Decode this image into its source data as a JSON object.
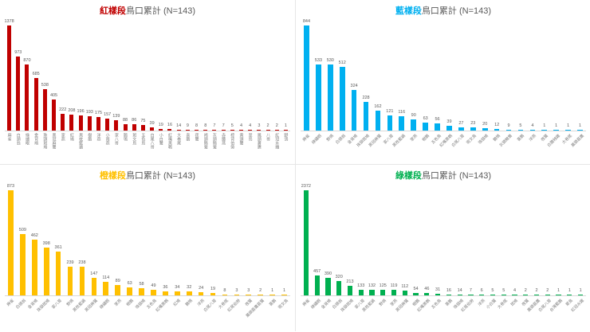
{
  "window": {
    "background": "#ffffff",
    "divider_color": "#e6e6e6"
  },
  "chart_data": [
    {
      "id": "red",
      "type": "bar",
      "title": "紅樣段鳥口累計 (N=143)",
      "title_highlight": "紅樣段",
      "title_rest": "鳥口累計 (N=143)",
      "color": "#c00000",
      "highlight_color": "#c00000",
      "label_orientation": "vertical",
      "categories": [
        "麻雀",
        "白頭翁",
        "綠繡眼",
        "金背鳩",
        "珠頸斑鳩",
        "黑冠麻鷺",
        "家燕",
        "紅鳩",
        "黑枕藍鶲",
        "樹鵲",
        "洋燕",
        "小雨燕",
        "家八哥",
        "鵲鴝",
        "斑文鳥",
        "五色鳥",
        "白尾八哥",
        "小白鷺",
        "紅嘴黑鵯",
        "大卷尾",
        "喜鵲",
        "夜鷺",
        "褐頭鷦鶯",
        "灰頭鷦鶯",
        "赤腰燕",
        "棕背伯勞",
        "黃頭鷺",
        "翠鳥",
        "鳳頭蒼鷹",
        "八哥",
        "紅冠水雞",
        "野鴿"
      ],
      "values": [
        1378,
        973,
        870,
        685,
        538,
        405,
        222,
        208,
        196,
        193,
        175,
        157,
        139,
        88,
        86,
        75,
        39,
        19,
        16,
        14,
        9,
        8,
        8,
        7,
        7,
        5,
        4,
        4,
        3,
        2,
        2,
        1
      ],
      "xlabel": "",
      "ylabel": "",
      "ylim": [
        0,
        1378
      ],
      "grid": false,
      "legend": "none"
    },
    {
      "id": "blue",
      "type": "bar",
      "title": "藍樣段鳥口累計 (N=143)",
      "title_highlight": "藍樣段",
      "title_rest": "鳥口累計 (N=143)",
      "color": "#00b0f0",
      "highlight_color": "#00b0f0",
      "label_orientation": "rotated",
      "categories": [
        "麻雀",
        "綠繡眼",
        "野鴿",
        "白頭翁",
        "金背鳩",
        "珠頸斑鳩",
        "黑冠麻鷺",
        "家八哥",
        "黑枕藍鶲",
        "家燕",
        "樹鵲",
        "五色鳥",
        "紅嘴黑鵯",
        "白尾八哥",
        "斑文鳥",
        "珠頸鳩",
        "鵲鴝",
        "灰頭鷦鶯",
        "喜鵲",
        "洋燕",
        "夜鷺",
        "白腹秧雞",
        "大卷尾",
        "鳳頭蒼鷹"
      ],
      "values": [
        844,
        533,
        530,
        512,
        324,
        228,
        162,
        121,
        116,
        90,
        63,
        56,
        39,
        27,
        23,
        20,
        12,
        9,
        5,
        4,
        1,
        1,
        1,
        1
      ],
      "xlabel": "",
      "ylabel": "",
      "ylim": [
        0,
        844
      ],
      "grid": false,
      "legend": "none"
    },
    {
      "id": "yellow",
      "type": "bar",
      "title": "橙樣段鳥口累計 (N=143)",
      "title_highlight": "橙樣段",
      "title_rest": "鳥口累計 (N=143)",
      "color": "#ffc000",
      "highlight_color": "#ffc000",
      "label_orientation": "rotated",
      "categories": [
        "麻雀",
        "白頭翁",
        "金背鳩",
        "珠頸斑鳩",
        "家八哥",
        "野鴿",
        "黑枕藍鶲",
        "黑冠麻鷺",
        "綠繡眼",
        "家燕",
        "樹鵲",
        "珠頸鳩",
        "五色鳥",
        "紅嘴黑鵯",
        "紅鳩",
        "鵲鴝",
        "洋燕",
        "白尾八哥",
        "大卷尾",
        "紅尾伯勞",
        "夜鷺",
        "鳳頭蒼鷹蒼鷺",
        "喜鵲",
        "斑文鳥"
      ],
      "values": [
        873,
        509,
        462,
        398,
        361,
        239,
        238,
        147,
        114,
        89,
        63,
        58,
        49,
        36,
        34,
        32,
        24,
        19,
        8,
        3,
        3,
        2,
        1,
        1
      ],
      "xlabel": "",
      "ylabel": "",
      "ylim": [
        0,
        873
      ],
      "grid": false,
      "legend": "none"
    },
    {
      "id": "green",
      "type": "bar",
      "title": "綠樣段鳥口累計 (N=143)",
      "title_highlight": "綠樣段",
      "title_rest": "鳥口累計 (N=143)",
      "color": "#00b050",
      "highlight_color": "#00b050",
      "label_orientation": "rotated",
      "categories": [
        "麻雀",
        "綠繡眼",
        "金背鳩",
        "白頭翁",
        "珠頸斑鳩",
        "家八哥",
        "黑枕藍鶲",
        "野鴿",
        "家燕",
        "黑冠麻鷺",
        "樹鵲",
        "紅嘴黑鵯",
        "五色鳥",
        "喜鵲",
        "珠頸鳩",
        "紅尾伯勞",
        "洋燕",
        "小白鷺",
        "大卷尾",
        "斑鳩",
        "夜鷺",
        "鳳頭蒼鷹",
        "白尾八哥",
        "台灣藍鵲",
        "翠鳥",
        "紅冠水雞"
      ],
      "values": [
        2372,
        457,
        390,
        320,
        213,
        133,
        132,
        125,
        119,
        112,
        54,
        46,
        31,
        16,
        14,
        7,
        6,
        5,
        5,
        4,
        2,
        2,
        2,
        1,
        1,
        1
      ],
      "xlabel": "",
      "ylabel": "",
      "ylim": [
        0,
        2372
      ],
      "grid": false,
      "legend": "none"
    }
  ]
}
